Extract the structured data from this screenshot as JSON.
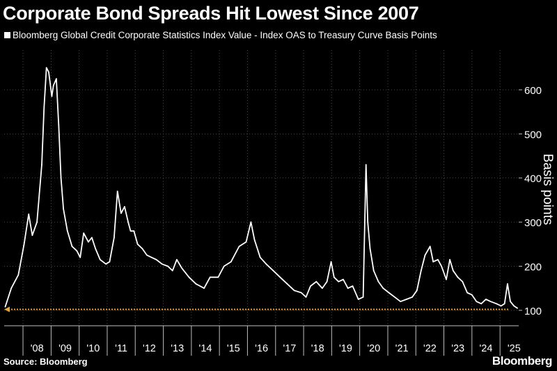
{
  "title": "Corporate Bond Spreads Hit Lowest Since 2007",
  "legend": "Bloomberg Global Credit Corporate Statistics Index Value - Index OAS to Treasury Curve Basis Points",
  "source": "Source: Bloomberg",
  "brand": "Bloomberg",
  "colors": {
    "background": "#000000",
    "line": "#ffffff",
    "reference_line": "#e8a23a",
    "grid": "#4a4a4a"
  },
  "chart_data": {
    "type": "line",
    "title": "Corporate Bond Spreads Hit Lowest Since 2007",
    "ylabel": "Basis points",
    "ylim": [
      65,
      690
    ],
    "y_ticks": [
      100,
      200,
      300,
      400,
      500,
      600
    ],
    "x_tick_labels": [
      "'08",
      "'09",
      "'10",
      "'11",
      "'12",
      "'13",
      "'14",
      "'15",
      "'16",
      "'17",
      "'18",
      "'19",
      "'20",
      "'21",
      "'22",
      "'23",
      "'24",
      "'25"
    ],
    "xlim": [
      "2007-05-01",
      "2025-09-01"
    ],
    "y_axis_position": "right",
    "grid": true,
    "reference_line": {
      "y": 102,
      "style": "dotted",
      "arrow": "left"
    },
    "series": [
      {
        "x": [
          "2007-05-15",
          "2007-08-01",
          "2007-11-01",
          "2008-01-15",
          "2008-03-15",
          "2008-05-01",
          "2008-07-01",
          "2008-09-01",
          "2008-10-01",
          "2008-11-01",
          "2008-12-01",
          "2009-01-10",
          "2009-02-01",
          "2009-03-10",
          "2009-04-10",
          "2009-05-10",
          "2009-06-10",
          "2009-08-01",
          "2009-10-01",
          "2009-12-01",
          "2010-01-15",
          "2010-03-01",
          "2010-05-01",
          "2010-06-15",
          "2010-08-01",
          "2010-10-01",
          "2010-12-15",
          "2011-02-01",
          "2011-04-01",
          "2011-05-15",
          "2011-07-01",
          "2011-08-15",
          "2011-10-01",
          "2011-11-01",
          "2011-12-15",
          "2012-02-01",
          "2012-04-01",
          "2012-06-01",
          "2012-08-01",
          "2012-10-01",
          "2012-12-15",
          "2013-03-01",
          "2013-05-01",
          "2013-06-25",
          "2013-09-01",
          "2013-12-01",
          "2014-03-01",
          "2014-06-15",
          "2014-09-01",
          "2014-12-15",
          "2015-03-01",
          "2015-06-01",
          "2015-09-15",
          "2015-12-15",
          "2016-02-15",
          "2016-04-01",
          "2016-06-15",
          "2016-09-01",
          "2016-12-01",
          "2017-03-01",
          "2017-06-01",
          "2017-09-01",
          "2017-12-01",
          "2018-02-01",
          "2018-04-01",
          "2018-06-15",
          "2018-09-01",
          "2018-11-01",
          "2018-12-25",
          "2019-02-01",
          "2019-04-01",
          "2019-06-01",
          "2019-08-01",
          "2019-10-01",
          "2019-12-15",
          "2020-02-15",
          "2020-03-23",
          "2020-04-15",
          "2020-05-15",
          "2020-07-01",
          "2020-09-01",
          "2020-11-01",
          "2021-01-15",
          "2021-04-01",
          "2021-06-15",
          "2021-09-01",
          "2021-11-15",
          "2022-01-15",
          "2022-03-10",
          "2022-05-01",
          "2022-07-05",
          "2022-08-15",
          "2022-10-15",
          "2022-12-01",
          "2023-02-01",
          "2023-03-20",
          "2023-05-01",
          "2023-07-01",
          "2023-09-01",
          "2023-11-01",
          "2024-01-01",
          "2024-03-01",
          "2024-05-01",
          "2024-07-01",
          "2024-09-01",
          "2024-11-15",
          "2025-01-15",
          "2025-03-01",
          "2025-04-08",
          "2025-05-15",
          "2025-07-01",
          "2025-08-15"
        ],
        "y": [
          108,
          150,
          180,
          250,
          318,
          270,
          300,
          430,
          560,
          650,
          640,
          585,
          610,
          625,
          520,
          400,
          330,
          280,
          245,
          235,
          220,
          275,
          255,
          265,
          240,
          215,
          205,
          210,
          265,
          370,
          320,
          335,
          300,
          280,
          280,
          250,
          240,
          225,
          220,
          215,
          205,
          200,
          190,
          215,
          195,
          175,
          160,
          150,
          175,
          175,
          200,
          210,
          245,
          255,
          300,
          260,
          220,
          205,
          190,
          175,
          160,
          145,
          140,
          130,
          155,
          165,
          150,
          165,
          210,
          175,
          165,
          170,
          150,
          155,
          125,
          130,
          430,
          300,
          240,
          190,
          165,
          150,
          140,
          130,
          120,
          125,
          130,
          145,
          190,
          225,
          245,
          210,
          215,
          200,
          170,
          215,
          190,
          175,
          165,
          140,
          135,
          120,
          115,
          125,
          120,
          115,
          110,
          115,
          160,
          120,
          110,
          105
        ]
      }
    ]
  }
}
